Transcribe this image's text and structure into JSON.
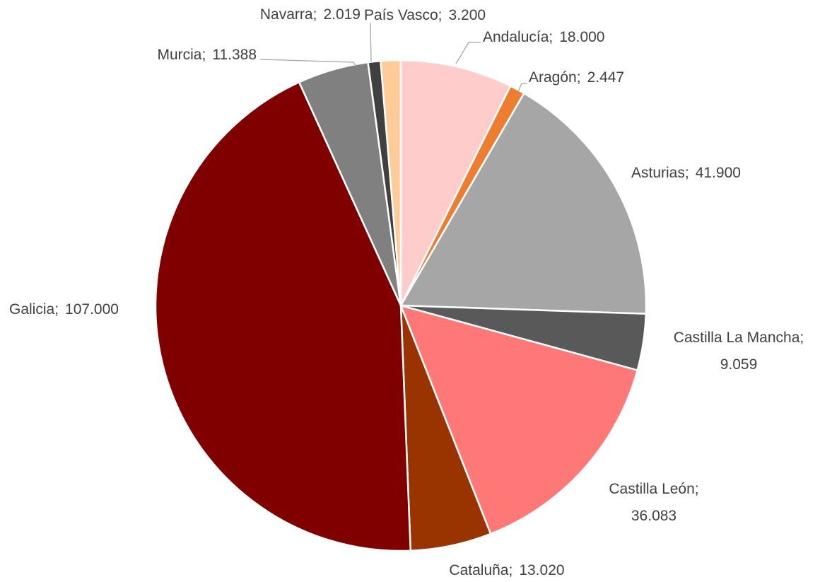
{
  "chart_data": {
    "type": "pie",
    "categories": [
      "Andalucía",
      "Aragón",
      "Asturias",
      "Castilla La Mancha",
      "Castilla León",
      "Cataluña",
      "Galicia",
      "Murcia",
      "Navarra",
      "País Vasco"
    ],
    "values": [
      18000,
      2447,
      41900,
      9059,
      36083,
      13020,
      107000,
      11388,
      2019,
      3200
    ],
    "value_labels": [
      "18.000",
      "2.447",
      "41.900",
      "9.059",
      "36.083",
      "13.020",
      "107.000",
      "11.388",
      "2.019",
      "3.200"
    ],
    "label_separator": ";",
    "colors": [
      "#ffcccc",
      "#ed7d31",
      "#a6a6a6",
      "#595959",
      "#ff7878",
      "#993300",
      "#800000",
      "#808080",
      "#404040",
      "#ffcc99"
    ]
  }
}
